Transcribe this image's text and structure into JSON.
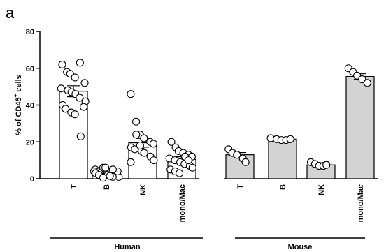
{
  "panel_label": "a",
  "chart_data": {
    "type": "bar",
    "ylabel_prefix": "% of CD45",
    "ylabel_sup": "+",
    "ylabel_suffix": " cells",
    "ylim": [
      0,
      80
    ],
    "yticks": [
      0,
      20,
      40,
      60,
      80
    ],
    "grid": false,
    "bars": [
      {
        "category": "T",
        "group": "Human",
        "mean": 47.5,
        "sem": 3.0,
        "fill": "#ffffff",
        "points": [
          62,
          58,
          57,
          55,
          63,
          52,
          49,
          48,
          47,
          46,
          44,
          42,
          40,
          38,
          36,
          35,
          23,
          39
        ]
      },
      {
        "category": "B",
        "group": "Human",
        "mean": 3.0,
        "sem": 0.6,
        "fill": "#ffffff",
        "points": [
          5,
          4,
          6,
          3,
          2,
          1,
          4,
          3,
          6,
          2,
          1,
          4,
          3,
          2,
          0.5,
          1.5,
          5
        ]
      },
      {
        "category": "NK",
        "group": "Human",
        "mean": 19.5,
        "sem": 2.4,
        "fill": "#ffffff",
        "points": [
          46,
          31,
          24,
          22,
          20,
          19,
          17,
          16,
          15,
          14,
          12,
          10,
          9,
          24,
          18
        ]
      },
      {
        "category": "mono/Mac",
        "group": "Human",
        "mean": 10.5,
        "sem": 1.4,
        "fill": "#ffffff",
        "points": [
          20,
          17,
          15,
          14,
          13,
          12,
          11,
          10,
          9,
          8,
          7,
          6,
          5,
          4,
          3,
          12,
          10
        ]
      },
      {
        "category": "T",
        "group": "Mouse",
        "mean": 13.0,
        "sem": 1.2,
        "fill": "#d3d3d3",
        "points": [
          16,
          14,
          13,
          11,
          9
        ]
      },
      {
        "category": "B",
        "group": "Mouse",
        "mean": 21.5,
        "sem": 0.5,
        "fill": "#d3d3d3",
        "points": [
          22,
          21.5,
          21,
          21,
          21.5
        ]
      },
      {
        "category": "NK",
        "group": "Mouse",
        "mean": 7.5,
        "sem": 0.6,
        "fill": "#d3d3d3",
        "points": [
          9,
          8,
          7,
          7,
          7.5
        ]
      },
      {
        "category": "mono/Mac",
        "group": "Mouse",
        "mean": 55.5,
        "sem": 1.5,
        "fill": "#d3d3d3",
        "points": [
          60,
          58,
          56,
          54,
          52
        ]
      }
    ],
    "groups": [
      {
        "name": "Human"
      },
      {
        "name": "Mouse"
      }
    ],
    "colors": {
      "human_fill": "#ffffff",
      "mouse_fill": "#d3d3d3",
      "stroke": "#000000"
    }
  }
}
